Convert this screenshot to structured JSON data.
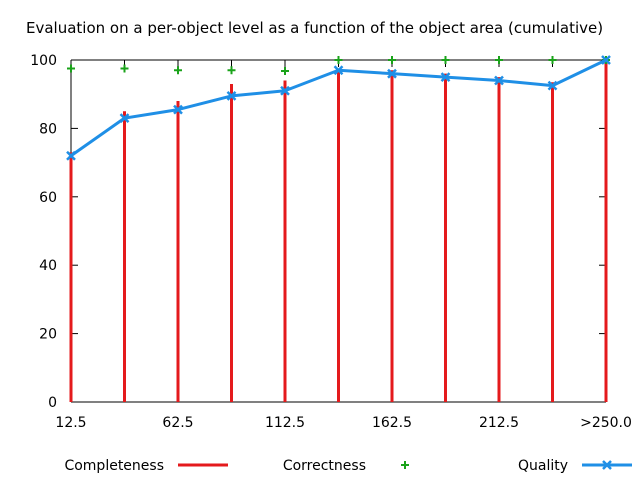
{
  "chart_data": {
    "type": "bar",
    "title": "Evaluation on a per-object level as a function of the object area (cumulative)",
    "xlabel": "",
    "ylabel": "",
    "ylim": [
      0,
      100
    ],
    "yticks": [
      0,
      20,
      40,
      60,
      80,
      100
    ],
    "xtick_labels": [
      "12.5",
      "62.5",
      "112.5",
      "162.5",
      "212.5",
      ">250.0"
    ],
    "categories": [
      "12.5",
      "37.5",
      "62.5",
      "87.5",
      "112.5",
      "137.5",
      "162.5",
      "187.5",
      "212.5",
      "237.5",
      ">250.0"
    ],
    "grid": false,
    "legend_placement": "bottom",
    "series": [
      {
        "name": "Completeness",
        "kind": "impulses",
        "color": "#e41a1c",
        "values": [
          73,
          85,
          88,
          93,
          94,
          97.5,
          97,
          96,
          95,
          93.5,
          100
        ]
      },
      {
        "name": "Correctness",
        "kind": "points",
        "color": "#1aa31a",
        "values": [
          97.5,
          97.5,
          97,
          97,
          96.8,
          100,
          100,
          100,
          100,
          100,
          100
        ]
      },
      {
        "name": "Quality",
        "kind": "linespoints",
        "color": "#1f8fe6",
        "values": [
          72,
          83,
          85.5,
          89.5,
          91,
          97,
          96,
          95,
          94,
          92.5,
          100
        ]
      }
    ]
  }
}
